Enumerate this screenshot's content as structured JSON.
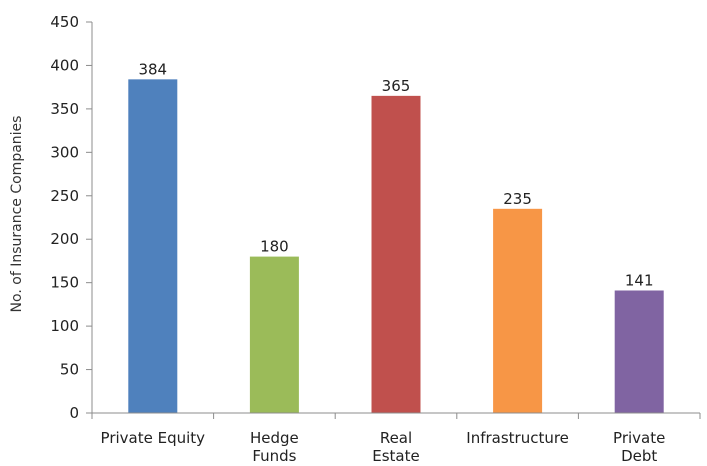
{
  "chart_data": {
    "type": "bar",
    "title": "",
    "xlabel": "",
    "ylabel": "No. of Insurance Companies",
    "ylim": [
      0,
      450
    ],
    "yticks": [
      0,
      50,
      100,
      150,
      200,
      250,
      300,
      350,
      400,
      450
    ],
    "grid": false,
    "legend": "none",
    "categories": [
      [
        "Private Equity"
      ],
      [
        "Hedge",
        "Funds"
      ],
      [
        "Real",
        "Estate"
      ],
      [
        "Infrastructure"
      ],
      [
        "Private",
        "Debt"
      ]
    ],
    "values": [
      384,
      180,
      365,
      235,
      141
    ],
    "colors": [
      "#4f81bd",
      "#9bbb59",
      "#c0504d",
      "#f79646",
      "#8064a2"
    ]
  }
}
